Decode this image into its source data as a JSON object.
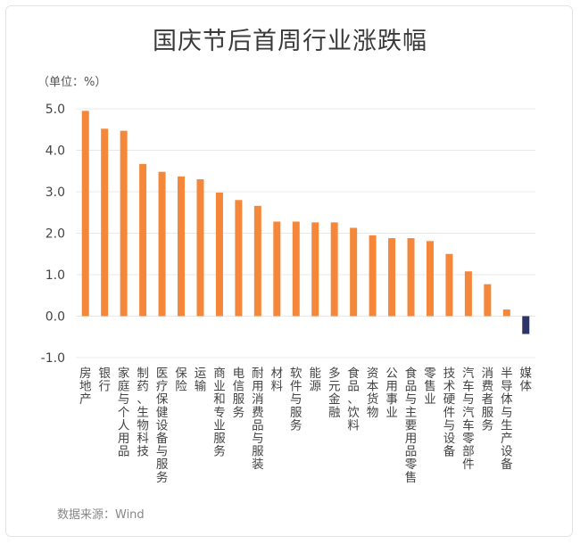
{
  "title": "国庆节后首周行业涨跌幅",
  "unit_label": "（单位：%）",
  "source": "数据来源：Wind",
  "colors": {
    "positive": "#F5873A",
    "negative": "#2D3466",
    "grid": "#e8e8e8",
    "text": "#444444"
  },
  "chart_data": {
    "type": "bar",
    "title": "国庆节后首周行业涨跌幅",
    "xlabel": "",
    "ylabel": "（单位：%）",
    "ylim": [
      -1.0,
      5.0
    ],
    "yticks": [
      "5.0",
      "4.0",
      "3.0",
      "2.0",
      "1.0",
      "0.0",
      "-1.0"
    ],
    "grid": true,
    "legend": "none",
    "categories": [
      "房地产",
      "银行",
      "家庭与个人用品",
      "制药、生物科技",
      "医疗保健设备与服务",
      "保险",
      "运输",
      "商业和专业服务",
      "电信服务",
      "耐用消费品与服装",
      "材料",
      "软件与服务",
      "能源",
      "多元金融",
      "食品、饮料",
      "资本货物",
      "公用事业",
      "食品与主要用品零售",
      "零售业",
      "技术硬件与设备",
      "汽车与汽车零部件",
      "消费者服务",
      "半导体与生产设备",
      "媒体"
    ],
    "values": [
      4.95,
      4.52,
      4.47,
      3.67,
      3.48,
      3.37,
      3.3,
      2.98,
      2.8,
      2.66,
      2.28,
      2.28,
      2.26,
      2.26,
      2.13,
      1.95,
      1.88,
      1.88,
      1.81,
      1.5,
      1.08,
      0.77,
      0.16,
      -0.43
    ]
  }
}
